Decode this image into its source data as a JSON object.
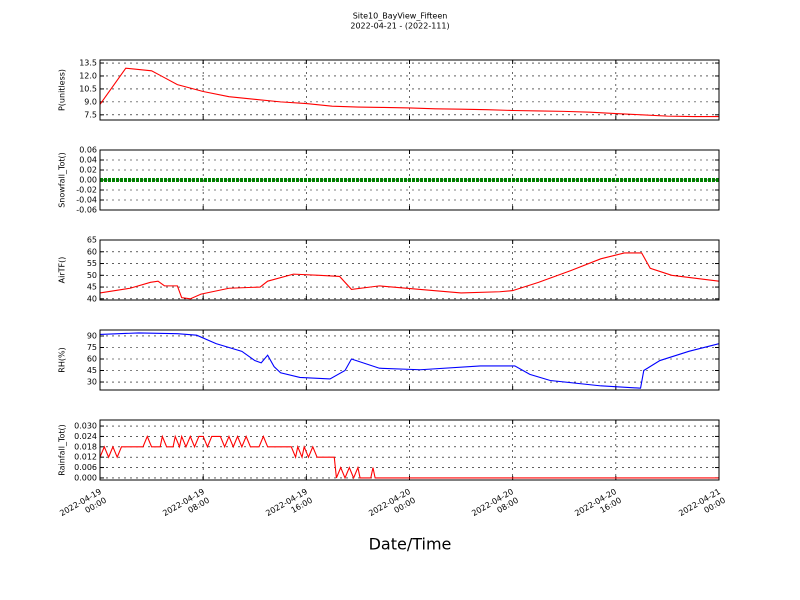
{
  "title": "Site10_BayView_Fifteen",
  "subtitle": "2022-04-21 - (2022-111)",
  "xlabel": "Date/Time",
  "xlim": [
    "2022-04-19 00:00",
    "2022-04-21 00:00"
  ],
  "xticks": [
    {
      "value": "2022-04-19 00:00",
      "label": "2022-04-19\n00:00"
    },
    {
      "value": "2022-04-19 08:00",
      "label": "2022-04-19\n08:00"
    },
    {
      "value": "2022-04-19 16:00",
      "label": "2022-04-19\n16:00"
    },
    {
      "value": "2022-04-20 00:00",
      "label": "2022-04-20\n00:00"
    },
    {
      "value": "2022-04-20 08:00",
      "label": "2022-04-20\n08:00"
    },
    {
      "value": "2022-04-20 16:00",
      "label": "2022-04-20\n16:00"
    },
    {
      "value": "2022-04-21 00:00",
      "label": "2022-04-21\n00:00"
    }
  ],
  "grid": true,
  "chart_data": [
    {
      "type": "line",
      "ylabel": "P(unitless)",
      "color": "#ff0000",
      "ylim": [
        6.9,
        13.85
      ],
      "yticks": [
        7.5,
        {
          "value": 9.0,
          "label": "9.0"
        },
        10.5,
        {
          "value": 12.0,
          "label": "12.0"
        },
        13.5
      ],
      "x": [
        "2022-04-19 00:00",
        "2022-04-19 02:00",
        "2022-04-19 04:00",
        "2022-04-19 05:00",
        "2022-04-19 06:00",
        "2022-04-19 08:00",
        "2022-04-19 10:00",
        "2022-04-19 12:00",
        "2022-04-19 14:00",
        "2022-04-19 16:00",
        "2022-04-19 18:00",
        "2022-04-19 20:00",
        "2022-04-19 22:00",
        "2022-04-20 00:00",
        "2022-04-20 02:00",
        "2022-04-20 04:00",
        "2022-04-20 06:00",
        "2022-04-20 08:00",
        "2022-04-20 10:00",
        "2022-04-20 12:00",
        "2022-04-20 14:00",
        "2022-04-20 16:00",
        "2022-04-20 18:00",
        "2022-04-20 20:00",
        "2022-04-20 22:00",
        "2022-04-21 00:00"
      ],
      "values": [
        8.7,
        12.9,
        12.6,
        11.8,
        11.0,
        10.2,
        9.6,
        9.3,
        9.0,
        8.8,
        8.5,
        8.4,
        8.35,
        8.3,
        8.2,
        8.15,
        8.1,
        8.0,
        7.95,
        7.9,
        7.8,
        7.65,
        7.5,
        7.35,
        7.3,
        7.3
      ]
    },
    {
      "type": "line",
      "ylabel": "Snowfall_Tot()",
      "color": "#008000",
      "ylim": [
        -0.06,
        0.06
      ],
      "yticks": [
        -0.06,
        -0.04,
        -0.02,
        {
          "value": 0,
          "label": "0.00"
        },
        0.02,
        0.04,
        0.06
      ],
      "x": [
        "2022-04-19 00:00",
        "2022-04-21 00:00"
      ],
      "values": [
        0,
        0
      ]
    },
    {
      "type": "line",
      "ylabel": "AirTF()",
      "color": "#ff0000",
      "ylim": [
        39.5,
        65
      ],
      "yticks": [
        40,
        45,
        50,
        55,
        60,
        65
      ],
      "x": [
        "2022-04-19 00:00",
        "2022-04-19 02:20",
        "2022-04-19 03:55",
        "2022-04-19 04:30",
        "2022-04-19 05:00",
        "2022-04-19 06:00",
        "2022-04-19 06:20",
        "2022-04-19 07:00",
        "2022-04-19 07:50",
        "2022-04-19 10:00",
        "2022-04-19 12:25",
        "2022-04-19 13:00",
        "2022-04-19 15:00",
        "2022-04-19 17:00",
        "2022-04-19 18:35",
        "2022-04-19 19:30",
        "2022-04-19 21:40",
        "2022-04-20 00:50",
        "2022-04-20 04:00",
        "2022-04-20 07:00",
        "2022-04-20 08:00",
        "2022-04-20 10:00",
        "2022-04-20 12:30",
        "2022-04-20 14:50",
        "2022-04-20 16:40",
        "2022-04-20 18:00",
        "2022-04-20 18:40",
        "2022-04-20 20:20",
        "2022-04-21 00:00"
      ],
      "values": [
        42.5,
        44.5,
        47,
        47.5,
        45.5,
        45.5,
        40.5,
        40,
        42,
        44.5,
        45,
        47.5,
        50.5,
        50,
        49.5,
        44,
        45.5,
        44,
        42.5,
        43,
        43.5,
        47,
        52,
        57,
        59.5,
        59.5,
        53,
        50,
        47.5
      ]
    },
    {
      "type": "line",
      "ylabel": "RH(%)",
      "color": "#0000ff",
      "ylim": [
        19.6,
        97.8
      ],
      "yticks": [
        30,
        45,
        60,
        75,
        90
      ],
      "x": [
        "2022-04-19 00:00",
        "2022-04-19 03:00",
        "2022-04-19 06:00",
        "2022-04-19 07:30",
        "2022-04-19 09:00",
        "2022-04-19 11:00",
        "2022-04-19 12:00",
        "2022-04-19 12:30",
        "2022-04-19 13:00",
        "2022-04-19 13:30",
        "2022-04-19 14:00",
        "2022-04-19 15:30",
        "2022-04-19 17:50",
        "2022-04-19 19:00",
        "2022-04-19 19:30",
        "2022-04-19 21:40",
        "2022-04-20 00:50",
        "2022-04-20 05:30",
        "2022-04-20 08:10",
        "2022-04-20 09:20",
        "2022-04-20 10:55",
        "2022-04-20 14:50",
        "2022-04-20 17:55",
        "2022-04-20 18:10",
        "2022-04-20 19:25",
        "2022-04-20 21:40",
        "2022-04-21 00:00"
      ],
      "values": [
        92,
        94,
        93,
        91,
        80,
        70,
        58,
        55,
        65,
        50,
        42,
        36,
        34,
        45,
        60,
        48,
        46,
        51,
        51,
        40,
        32,
        25,
        22,
        45,
        58,
        70,
        80
      ]
    },
    {
      "type": "line",
      "ylabel": "Rainfall_Tot()",
      "color": "#ff0000",
      "ylim": [
        -0.0012,
        0.0335
      ],
      "yticks": [
        {
          "value": 0,
          "label": "0.000"
        },
        0.006,
        0.012,
        0.018,
        0.024,
        {
          "value": 0.03,
          "label": "0.030"
        }
      ],
      "x": [
        "2022-04-19 00:00",
        "2022-04-19 00:20",
        "2022-04-19 00:40",
        "2022-04-19 01:00",
        "2022-04-19 01:20",
        "2022-04-19 01:40",
        "2022-04-19 03:20",
        "2022-04-19 03:40",
        "2022-04-19 04:00",
        "2022-04-19 04:40",
        "2022-04-19 04:50",
        "2022-04-19 05:10",
        "2022-04-19 05:40",
        "2022-04-19 05:50",
        "2022-04-19 06:10",
        "2022-04-19 06:20",
        "2022-04-19 06:40",
        "2022-04-19 07:00",
        "2022-04-19 07:20",
        "2022-04-19 07:40",
        "2022-04-19 08:00",
        "2022-04-19 08:20",
        "2022-04-19 08:40",
        "2022-04-19 09:20",
        "2022-04-19 09:40",
        "2022-04-19 10:00",
        "2022-04-19 10:20",
        "2022-04-19 10:40",
        "2022-04-19 11:00",
        "2022-04-19 11:20",
        "2022-04-19 11:40",
        "2022-04-19 12:20",
        "2022-04-19 12:40",
        "2022-04-19 13:00",
        "2022-04-19 14:50",
        "2022-04-19 15:10",
        "2022-04-19 15:20",
        "2022-04-19 15:40",
        "2022-04-19 15:50",
        "2022-04-19 16:10",
        "2022-04-19 16:30",
        "2022-04-19 16:50",
        "2022-04-19 18:10",
        "2022-04-19 18:20",
        "2022-04-19 18:40",
        "2022-04-19 19:00",
        "2022-04-19 19:20",
        "2022-04-19 19:40",
        "2022-04-19 20:00",
        "2022-04-19 20:10",
        "2022-04-19 21:00",
        "2022-04-19 21:10",
        "2022-04-19 21:20",
        "2022-04-20 00:00",
        "2022-04-21 00:00"
      ],
      "values": [
        0.012,
        0.018,
        0.012,
        0.018,
        0.012,
        0.018,
        0.018,
        0.024,
        0.018,
        0.018,
        0.024,
        0.018,
        0.018,
        0.024,
        0.018,
        0.024,
        0.018,
        0.024,
        0.018,
        0.024,
        0.024,
        0.018,
        0.024,
        0.024,
        0.018,
        0.024,
        0.018,
        0.024,
        0.018,
        0.024,
        0.018,
        0.018,
        0.024,
        0.018,
        0.018,
        0.012,
        0.018,
        0.012,
        0.018,
        0.012,
        0.018,
        0.012,
        0.012,
        0,
        0.006,
        0,
        0.006,
        0,
        0.006,
        0,
        0,
        0.006,
        0,
        0,
        0
      ]
    }
  ]
}
